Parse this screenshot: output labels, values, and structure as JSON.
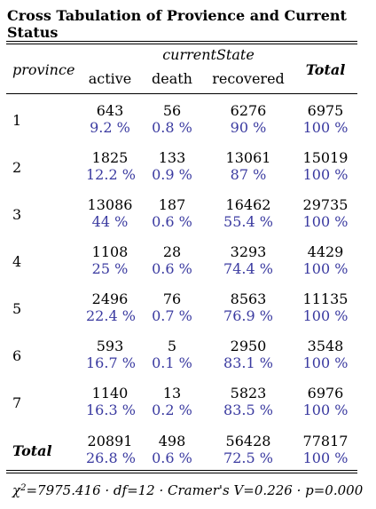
{
  "title": "Cross Tabulation of Provience and Current Status",
  "header": {
    "group_label": "currentState",
    "row_var": "province",
    "columns": [
      "active",
      "death",
      "recovered"
    ],
    "total_label": "Total"
  },
  "rows": [
    {
      "label": "1",
      "counts": [
        "643",
        "56",
        "6276",
        "6975"
      ],
      "pcts": [
        "9.2 %",
        "0.8 %",
        "90 %",
        "100 %"
      ]
    },
    {
      "label": "2",
      "counts": [
        "1825",
        "133",
        "13061",
        "15019"
      ],
      "pcts": [
        "12.2 %",
        "0.9 %",
        "87 %",
        "100 %"
      ]
    },
    {
      "label": "3",
      "counts": [
        "13086",
        "187",
        "16462",
        "29735"
      ],
      "pcts": [
        "44 %",
        "0.6 %",
        "55.4 %",
        "100 %"
      ]
    },
    {
      "label": "4",
      "counts": [
        "1108",
        "28",
        "3293",
        "4429"
      ],
      "pcts": [
        "25 %",
        "0.6 %",
        "74.4 %",
        "100 %"
      ]
    },
    {
      "label": "5",
      "counts": [
        "2496",
        "76",
        "8563",
        "11135"
      ],
      "pcts": [
        "22.4 %",
        "0.7 %",
        "76.9 %",
        "100 %"
      ]
    },
    {
      "label": "6",
      "counts": [
        "593",
        "5",
        "2950",
        "3548"
      ],
      "pcts": [
        "16.7 %",
        "0.1 %",
        "83.1 %",
        "100 %"
      ]
    },
    {
      "label": "7",
      "counts": [
        "1140",
        "13",
        "5823",
        "6976"
      ],
      "pcts": [
        "16.3 %",
        "0.2 %",
        "83.5 %",
        "100 %"
      ]
    }
  ],
  "total_row": {
    "label": "Total",
    "counts": [
      "20891",
      "498",
      "56428",
      "77817"
    ],
    "pcts": [
      "26.8 %",
      "0.6 %",
      "72.5 %",
      "100 %"
    ]
  },
  "footer": {
    "chi_symbol": "χ",
    "chi_sup": "2",
    "stats": "=7975.416 · df=12 · Cramer's V=0.226 · p=0.000"
  },
  "colors": {
    "percent": "#3a3aa0",
    "text": "#000000"
  }
}
